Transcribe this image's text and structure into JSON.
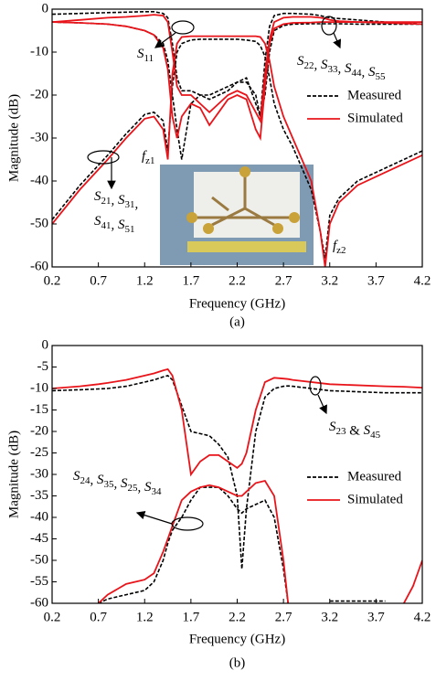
{
  "chart_data": [
    {
      "type": "line",
      "caption": "(a)",
      "xlabel": "Frequency (GHz)",
      "ylabel": "Magnitude (dB)",
      "xlim": [
        0.2,
        4.2
      ],
      "xticks": [
        0.2,
        0.7,
        1.2,
        1.7,
        2.2,
        2.7,
        3.2,
        3.7,
        4.2
      ],
      "ylim": [
        -60,
        0
      ],
      "yticks": [
        0,
        -10,
        -20,
        -30,
        -40,
        -50,
        -60
      ],
      "grid": false,
      "annotations": [
        "S11",
        "S22, S33,  S44, S55",
        "S21, S31,",
        "S41, S51",
        "fz1",
        "fz2"
      ],
      "x": [
        0.2,
        0.5,
        0.8,
        1.0,
        1.2,
        1.3,
        1.4,
        1.45,
        1.5,
        1.55,
        1.6,
        1.7,
        1.8,
        1.9,
        2.0,
        2.1,
        2.2,
        2.3,
        2.4,
        2.45,
        2.5,
        2.55,
        2.6,
        2.7,
        2.8,
        3.0,
        3.1,
        3.15,
        3.2,
        3.3,
        3.5,
        3.8,
        4.2
      ],
      "series": [
        {
          "name": "Measured",
          "color": "#000000",
          "style": "dashed",
          "curves": [
            [
              -49,
              -41,
              -34,
              -29,
              -24.5,
              -24,
              -26,
              -33,
              -18,
              -10,
              -8,
              -7.2,
              -7,
              -7,
              -7,
              -7,
              -7,
              -7.2,
              -7.5,
              -8.5,
              -11,
              -16,
              -22,
              -28,
              -32,
              -42,
              -52,
              -58,
              -48,
              -44,
              -40,
              -37,
              -33
            ],
            [
              -3,
              -3.2,
              -3.5,
              -4,
              -5,
              -6,
              -8,
              -12,
              -20,
              -28,
              -35,
              -22,
              -20,
              -20,
              -19,
              -18,
              -17,
              -17,
              -20,
              -25,
              -20,
              -10,
              -5,
              -3.8,
              -3.5,
              -3.4,
              -3.4,
              -3.4,
              -3.4,
              -3.4,
              -3.5,
              -3.5,
              -3.5
            ],
            [
              -1.2,
              -1,
              -0.8,
              -0.7,
              -0.6,
              -0.6,
              -1,
              -2,
              -8,
              -16,
              -19,
              -19,
              -20,
              -21,
              -20,
              -19,
              -17,
              -16,
              -22,
              -25,
              -12,
              -4,
              -1.5,
              -1,
              -1,
              -1.2,
              -1.5,
              -1.8,
              -2,
              -2.2,
              -2.5,
              -3,
              -3.5
            ]
          ]
        },
        {
          "name": "Simulated",
          "color": "#e8141a",
          "style": "solid",
          "curves": [
            [
              -50,
              -42,
              -35,
              -30,
              -25.5,
              -25,
              -28,
              -35,
              -15,
              -8,
              -6.5,
              -6.3,
              -6.3,
              -6.3,
              -6.3,
              -6.3,
              -6.3,
              -6.3,
              -6.3,
              -6.5,
              -8,
              -12,
              -18,
              -25,
              -30,
              -40,
              -52,
              -60,
              -50,
              -45,
              -41,
              -38,
              -34
            ],
            [
              -3,
              -3.2,
              -3.5,
              -4,
              -5,
              -6,
              -9,
              -14,
              -25,
              -30,
              -25,
              -22,
              -23,
              -27,
              -24,
              -21,
              -20,
              -21,
              -28,
              -30,
              -18,
              -8,
              -4.5,
              -3.5,
              -3.2,
              -3.1,
              -3,
              -3,
              -3,
              -3,
              -3,
              -3,
              -3
            ],
            [
              -3,
              -2.5,
              -2,
              -1.8,
              -1.5,
              -1.3,
              -1.5,
              -3,
              -10,
              -18,
              -20,
              -20,
              -22,
              -24,
              -22,
              -20,
              -19,
              -20,
              -24,
              -26,
              -15,
              -7,
              -3,
              -2,
              -1.8,
              -1.8,
              -2,
              -2.2,
              -2.5,
              -2.8,
              -3,
              -3.2,
              -3.5
            ]
          ]
        }
      ]
    },
    {
      "type": "line",
      "caption": "(b)",
      "xlabel": "Frequency (GHz)",
      "ylabel": "Magnitude (dB)",
      "xlim": [
        0.2,
        4.2
      ],
      "xticks": [
        0.2,
        0.7,
        1.2,
        1.7,
        2.2,
        2.7,
        3.2,
        3.7,
        4.2
      ],
      "ylim": [
        -60,
        0
      ],
      "yticks": [
        0,
        -5,
        -10,
        -15,
        -20,
        -25,
        -30,
        -35,
        -40,
        -45,
        -50,
        -55,
        -60
      ],
      "grid": false,
      "annotations": [
        "S23 & S45",
        "S24, S35, S25, S34"
      ],
      "x": [
        0.2,
        0.5,
        0.7,
        0.8,
        1.0,
        1.2,
        1.3,
        1.4,
        1.45,
        1.5,
        1.6,
        1.7,
        1.8,
        1.9,
        2.0,
        2.1,
        2.2,
        2.25,
        2.3,
        2.4,
        2.5,
        2.6,
        2.7,
        2.75,
        2.8,
        3.2,
        3.8,
        4.0,
        4.1,
        4.2
      ],
      "series": [
        {
          "name": "Measured",
          "color": "#000000",
          "style": "dashed",
          "curves": [
            [
              -10.5,
              -10.3,
              -10.1,
              -10,
              -9.5,
              -8.5,
              -8,
              -7.3,
              -7,
              -8,
              -14,
              -20,
              -20.5,
              -21,
              -23,
              -26,
              -35,
              -52,
              -38,
              -20,
              -12,
              -10,
              -9.5,
              -9.4,
              -9.5,
              -10.5,
              -11,
              -11,
              -11,
              -11
            ],
            [
              null,
              null,
              -60,
              -59,
              -58,
              -57,
              -55,
              -50,
              -46,
              -43,
              -40,
              -36,
              -33,
              -33,
              -33,
              -35,
              -38,
              -39,
              -38,
              -37,
              -36,
              -40,
              -52,
              -60,
              null,
              -59.5,
              -59.5,
              null,
              null,
              null
            ]
          ]
        },
        {
          "name": "Simulated",
          "color": "#e8141a",
          "style": "solid",
          "curves": [
            [
              -10,
              -9.5,
              -9,
              -8.7,
              -8,
              -7,
              -6.5,
              -5.8,
              -5.5,
              -7,
              -15,
              -30,
              -27,
              -25.5,
              -25.5,
              -27,
              -28.5,
              -27.5,
              -25,
              -15,
              -8.5,
              -7.5,
              -7.7,
              -7.8,
              -8,
              -9,
              -9.5,
              -9.6,
              -9.7,
              -9.8
            ],
            [
              null,
              null,
              -60,
              -58,
              -55.5,
              -54.5,
              -53,
              -48,
              -45,
              -42,
              -36,
              -34,
              -33,
              -32.5,
              -33,
              -34,
              -35,
              -35,
              -34,
              -32,
              -31.5,
              -35,
              -50,
              -60,
              null,
              null,
              null,
              -60,
              -56,
              -50
            ]
          ]
        }
      ]
    }
  ]
}
